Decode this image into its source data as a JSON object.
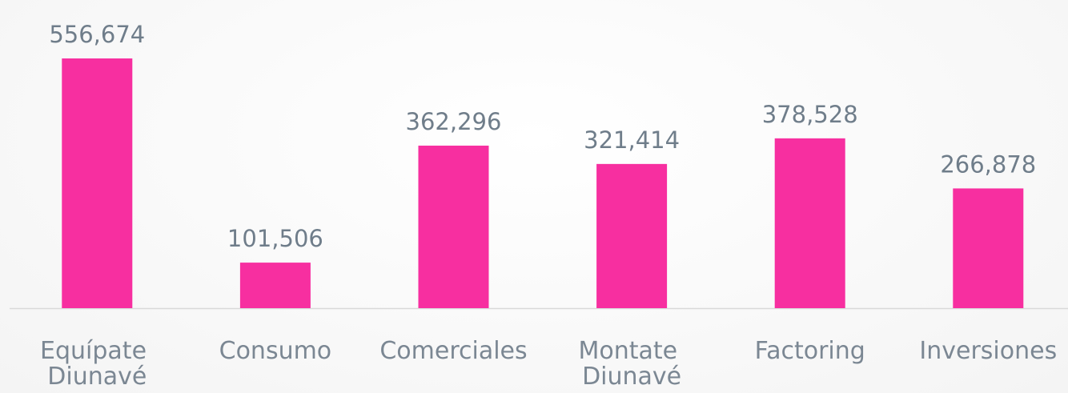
{
  "chart_data": {
    "type": "bar",
    "categories": [
      "Equípate Diunavé",
      "Consumo",
      "Comerciales",
      "Montate Diunavé",
      "Factoring",
      "Inversiones"
    ],
    "values": [
      556674,
      101506,
      362296,
      321414,
      378528,
      266878
    ],
    "value_labels": [
      "556,674",
      "101,506",
      "362,296",
      "321,414",
      "378,528",
      "266,878"
    ],
    "color": "#f72fa0"
  }
}
